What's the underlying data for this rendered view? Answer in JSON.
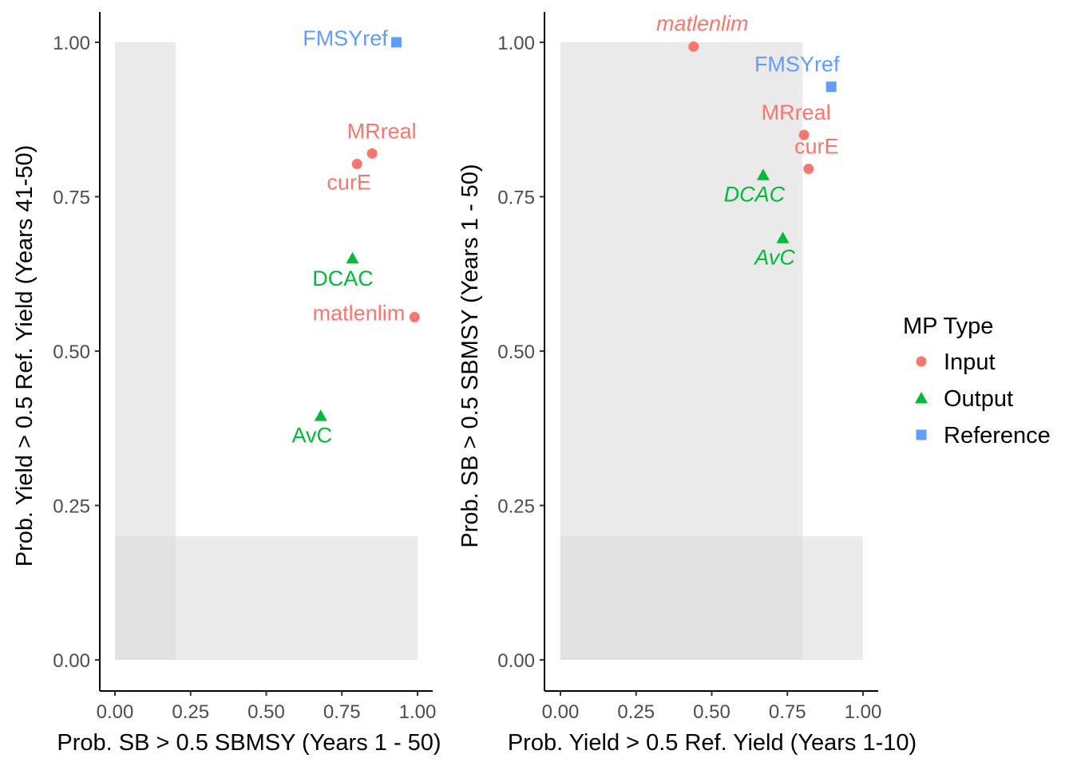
{
  "colors": {
    "Input": "#F8766D",
    "Output": "#00BA38",
    "Reference": "#619CFF",
    "shade": "#d9d9d9"
  },
  "legend": {
    "title": "MP Type",
    "entries": [
      {
        "label": "Input",
        "shape": "circle"
      },
      {
        "label": "Output",
        "shape": "triangle"
      },
      {
        "label": "Reference",
        "shape": "square"
      }
    ]
  },
  "chart_data": [
    {
      "type": "scatter",
      "xlabel": "Prob. SB > 0.5 SBMSY (Years 1 - 50)",
      "ylabel": "Prob. Yield > 0.5 Ref. Yield (Years 41-50)",
      "xlim": [
        0,
        1
      ],
      "ylim": [
        0,
        1
      ],
      "xticks": [
        "0.00",
        "0.25",
        "0.50",
        "0.75",
        "1.00"
      ],
      "yticks": [
        "0.00",
        "0.25",
        "0.50",
        "0.75",
        "1.00"
      ],
      "label_style": "normal",
      "shaded_regions": [
        {
          "x": [
            0,
            0.2
          ],
          "y": [
            0,
            1
          ]
        },
        {
          "x": [
            0,
            1
          ],
          "y": [
            0,
            0.2
          ]
        }
      ],
      "points": [
        {
          "label": "FMSYref",
          "type": "Reference",
          "x": 0.93,
          "y": 1.0
        },
        {
          "label": "MRreal",
          "type": "Input",
          "x": 0.85,
          "y": 0.82
        },
        {
          "label": "curE",
          "type": "Input",
          "x": 0.8,
          "y": 0.803
        },
        {
          "label": "DCAC",
          "type": "Output",
          "x": 0.785,
          "y": 0.65
        },
        {
          "label": "matlenlim",
          "type": "Input",
          "x": 0.99,
          "y": 0.555
        },
        {
          "label": "AvC",
          "type": "Output",
          "x": 0.68,
          "y": 0.395
        }
      ]
    },
    {
      "type": "scatter",
      "xlabel": "Prob. Yield > 0.5 Ref. Yield (Years 1-10)",
      "ylabel": "Prob. SB > 0.5 SBMSY (Years 1 - 50)",
      "xlim": [
        0,
        1
      ],
      "ylim": [
        0,
        1
      ],
      "xticks": [
        "0.00",
        "0.25",
        "0.50",
        "0.75",
        "1.00"
      ],
      "yticks": [
        "0.00",
        "0.25",
        "0.50",
        "0.75",
        "1.00"
      ],
      "label_style": "mixed",
      "shaded_regions": [
        {
          "x": [
            0,
            0.8
          ],
          "y": [
            0,
            1
          ]
        },
        {
          "x": [
            0,
            1
          ],
          "y": [
            0,
            0.2
          ]
        }
      ],
      "points": [
        {
          "label": "matlenlim",
          "type": "Input",
          "x": 0.44,
          "y": 0.993,
          "italic": true
        },
        {
          "label": "FMSYref",
          "type": "Reference",
          "x": 0.895,
          "y": 0.928,
          "italic": false
        },
        {
          "label": "MRreal",
          "type": "Input",
          "x": 0.805,
          "y": 0.85,
          "italic": false
        },
        {
          "label": "curE",
          "type": "Input",
          "x": 0.82,
          "y": 0.795,
          "italic": false
        },
        {
          "label": "DCAC",
          "type": "Output",
          "x": 0.67,
          "y": 0.785,
          "italic": true
        },
        {
          "label": "AvC",
          "type": "Output",
          "x": 0.735,
          "y": 0.683,
          "italic": true
        }
      ]
    }
  ]
}
